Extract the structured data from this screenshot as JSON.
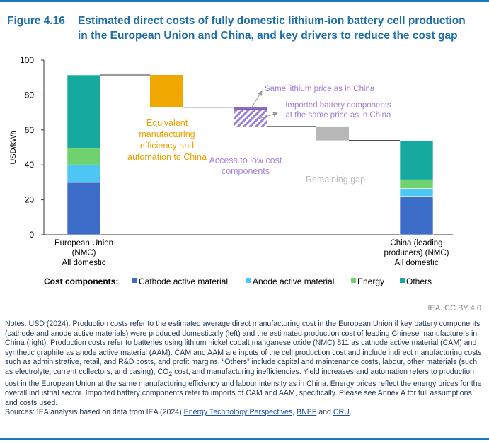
{
  "figure": {
    "number": "Figure 4.16",
    "title_line1": "Estimated direct costs of fully domestic lithium-ion battery cell production",
    "title_line2": "in the European Union and China, and key drivers to reduce the cost gap"
  },
  "chart_data": {
    "type": "waterfall",
    "ylabel": "USD/kWh",
    "ylim": [
      0,
      100
    ],
    "yticks": [
      0,
      20,
      40,
      60,
      80,
      100
    ],
    "stacked_bars": [
      {
        "label_lines": [
          "European Union",
          "(NMC)",
          "All domestic"
        ],
        "segments": [
          {
            "component": "Cathode active material",
            "value": 30
          },
          {
            "component": "Anode active material",
            "value": 10
          },
          {
            "component": "Energy",
            "value": 9.5
          },
          {
            "component": "Others",
            "value": 42
          }
        ]
      },
      {
        "label_lines": [
          "China (leading",
          "producers) (NMC)",
          "All domestic"
        ],
        "segments": [
          {
            "component": "Cathode active material",
            "value": 22
          },
          {
            "component": "Anode active material",
            "value": 4.5
          },
          {
            "component": "Energy",
            "value": 5
          },
          {
            "component": "Others",
            "value": 22.5
          }
        ]
      }
    ],
    "steps": [
      {
        "name": "Equivalent manufacturing efficiency and automation to China",
        "from": 91.5,
        "to": 73,
        "color": "#f0a800",
        "label_lines": [
          "Equivalent",
          "manufacturing",
          "efficiency and",
          "automation to China"
        ]
      },
      {
        "name": "Same lithium price as in China",
        "from": 73,
        "to": 71.5,
        "color": "#8a6cc8",
        "label_lines": [
          "Same lithium price as in China"
        ]
      },
      {
        "name": "Imported battery components at the same price as in China",
        "from": 71.5,
        "to": 62,
        "color": "hatch",
        "label_lines": [
          "Imported battery components",
          "at the same price as in China"
        ]
      },
      {
        "name": "Access to low cost components",
        "from": 62,
        "to": 62,
        "color": "#a784d8",
        "label_lines": [
          "Access to low cost",
          "components"
        ]
      },
      {
        "name": "Remaining gap",
        "from": 62,
        "to": 54,
        "color": "#b8b8b8",
        "label_lines": [
          "Remaining gap"
        ]
      }
    ],
    "legend": {
      "title": "Cost components:",
      "items": [
        {
          "label": "Cathode active material",
          "color": "#3c6dc9"
        },
        {
          "label": "Anode active material",
          "color": "#4dc6f4"
        },
        {
          "label": "Energy",
          "color": "#6fd26f"
        },
        {
          "label": "Others",
          "color": "#16a99d"
        }
      ]
    }
  },
  "credit": "IEA. CC BY 4.0.",
  "notes": {
    "line1": "Notes: USD (2024). Production costs refer to the estimated average direct manufacturing cost in the European Union if key battery components (cathode and anode active materials) were produced domestically (left) and the estimated production cost of leading Chinese manufacturers in China (right). Production costs refer to batteries using lithium nickel cobalt manganese oxide (NMC) 811 as cathode active material (CAM) and synthetic graphite as anode active material (AAM). CAM and AAM are inputs of the cell production cost and include indirect manufacturing costs such as administrative, retail, and R&D costs, and profit margins. “Others” include capital and maintenance costs, labour, other materials (such as electrolyte, current collectors, and casing), CO",
    "co2_sub": "2",
    "line2": " cost, and manufacturing inefficiencies. Yield increases and automation refers to production cost in the European Union at the same manufacturing efficiency and labour intensity as in China. Energy prices reflect the energy prices for the overall industrial sector. Imported battery components refer to imports of CAM and AAM, specifically. Please see Annex A for full assumptions and costs used.",
    "sources_prefix": "Sources: IEA analysis based on data from IEA (2024) ",
    "source_link1": "Energy Technology Perspectives",
    "sep1": ", ",
    "source_link2": "BNEF",
    "sep2": " and ",
    "source_link3": "CRU",
    "end": "."
  }
}
